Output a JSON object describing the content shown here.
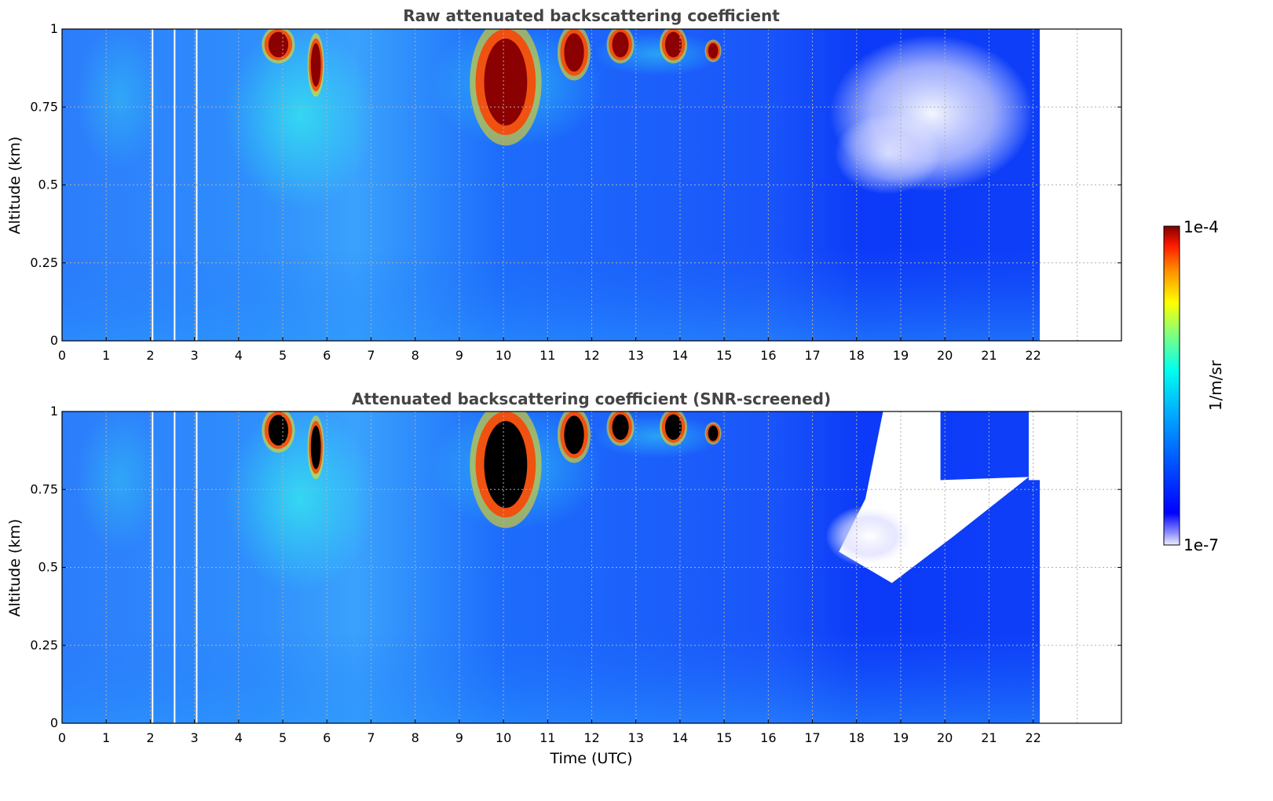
{
  "chart_data": [
    {
      "type": "heatmap",
      "title": "Raw attenuated backscattering coefficient",
      "xlabel": "",
      "ylabel": "Altitude (km)",
      "xlim": [
        0,
        24
      ],
      "ylim": [
        0,
        1
      ],
      "xticks": [
        "0",
        "1",
        "2",
        "3",
        "4",
        "5",
        "6",
        "7",
        "8",
        "9",
        "10",
        "11",
        "12",
        "13",
        "14",
        "15",
        "16",
        "17",
        "18",
        "19",
        "20",
        "21",
        "22"
      ],
      "yticks": [
        "0",
        "0.25",
        "0.5",
        "0.75",
        "1"
      ],
      "data_end_hour": 22.15,
      "gaps_hours": [
        2.05,
        2.55,
        3.05
      ],
      "grid": true,
      "screened": false,
      "clouds": [
        {
          "t_start": 4.6,
          "t_end": 5.2,
          "alt_min": 0.9,
          "alt_max": 1.0
        },
        {
          "t_start": 5.6,
          "t_end": 5.9,
          "alt_min": 0.8,
          "alt_max": 0.97
        },
        {
          "t_start": 9.4,
          "t_end": 10.7,
          "alt_min": 0.66,
          "alt_max": 1.0
        },
        {
          "t_start": 11.3,
          "t_end": 11.9,
          "alt_min": 0.85,
          "alt_max": 1.0
        },
        {
          "t_start": 12.4,
          "t_end": 12.9,
          "alt_min": 0.9,
          "alt_max": 1.0
        },
        {
          "t_start": 13.6,
          "t_end": 14.1,
          "alt_min": 0.9,
          "alt_max": 1.0
        },
        {
          "t_start": 14.6,
          "t_end": 14.9,
          "alt_min": 0.9,
          "alt_max": 0.96
        }
      ]
    },
    {
      "type": "heatmap",
      "title": "Attenuated backscattering coefficient (SNR-screened)",
      "xlabel": "Time (UTC)",
      "ylabel": "Altitude (km)",
      "xlim": [
        0,
        24
      ],
      "ylim": [
        0,
        1
      ],
      "xticks": [
        "0",
        "1",
        "2",
        "3",
        "4",
        "5",
        "6",
        "7",
        "8",
        "9",
        "10",
        "11",
        "12",
        "13",
        "14",
        "15",
        "16",
        "17",
        "18",
        "19",
        "20",
        "21",
        "22"
      ],
      "yticks": [
        "0",
        "0.25",
        "0.5",
        "0.75",
        "1"
      ],
      "data_end_hour": 22.15,
      "gaps_hours": [
        2.05,
        2.55,
        3.05
      ],
      "grid": true,
      "screened": true,
      "clouds": [
        {
          "t_start": 4.6,
          "t_end": 5.2,
          "alt_min": 0.88,
          "alt_max": 1.0
        },
        {
          "t_start": 5.6,
          "t_end": 5.9,
          "alt_min": 0.8,
          "alt_max": 0.97
        },
        {
          "t_start": 9.4,
          "t_end": 10.7,
          "alt_min": 0.66,
          "alt_max": 1.0
        },
        {
          "t_start": 11.3,
          "t_end": 11.9,
          "alt_min": 0.85,
          "alt_max": 1.0
        },
        {
          "t_start": 12.4,
          "t_end": 12.9,
          "alt_min": 0.9,
          "alt_max": 1.0
        },
        {
          "t_start": 13.6,
          "t_end": 14.1,
          "alt_min": 0.9,
          "alt_max": 1.0
        },
        {
          "t_start": 14.6,
          "t_end": 14.9,
          "alt_min": 0.9,
          "alt_max": 0.96
        }
      ]
    }
  ],
  "colorbar": {
    "label": "1/m/sr",
    "max_label": "1e-4",
    "min_label": "1e-7",
    "colormap": [
      "#eeeeff",
      "#8888ff",
      "#0000ff",
      "#0060ff",
      "#00b0ff",
      "#00ffee",
      "#80ff80",
      "#ffff00",
      "#ff9000",
      "#ff1800",
      "#7f0000"
    ]
  }
}
